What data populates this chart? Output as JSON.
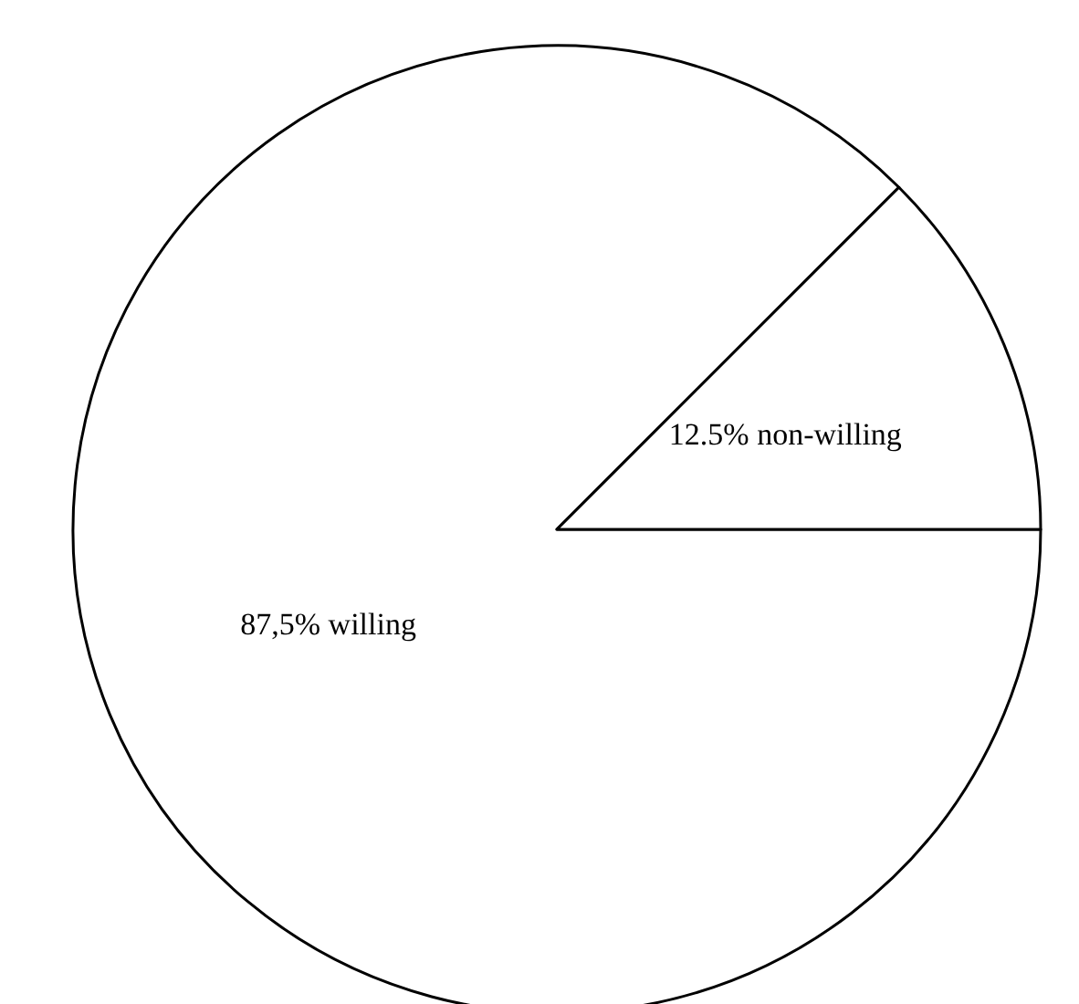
{
  "chart_data": {
    "type": "pie",
    "categories": [
      "willing",
      "non-willing"
    ],
    "values": [
      87.5,
      12.5
    ],
    "value_labels": [
      "87,5%",
      "12.5%"
    ],
    "colors": [
      "#ffffff",
      "#ffffff"
    ]
  }
}
